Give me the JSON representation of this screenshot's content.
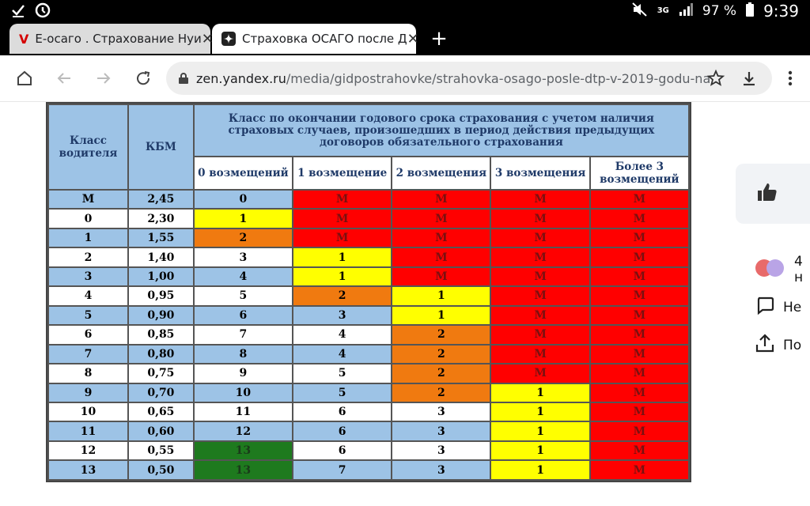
{
  "status_bar": {
    "left_icons": [
      "check-icon",
      "data-saver-icon"
    ],
    "network": "3G",
    "battery": "97 %",
    "time": "9:39"
  },
  "tabs": [
    {
      "favicon": "V",
      "title": "E-осаго . Страхование Нуи",
      "active": false
    },
    {
      "favicon": "",
      "title": "Страховка ОСАГО после Д",
      "active": true
    }
  ],
  "new_tab_label": "+",
  "omnibox": {
    "host": "zen.yandex.ru",
    "path": "/media/gidpostrahovke/strahovka-osago-posle-dtp-v-2019-godu-na"
  },
  "table": {
    "header_col1": "Класс водителя",
    "header_col2": "КБМ",
    "header_group": "Класс по окончании годового срока страхования с учетом наличия страховых случаев, произошедших в период действия предыдущих договоров обязательного страхования",
    "sub_headers": [
      "0 возмещений",
      "1 возмещение",
      "2 возмещения",
      "3 возмещения",
      "Более 3 возмещений"
    ],
    "rows": [
      {
        "cls": "M",
        "kbm": "2,45",
        "v": [
          "0",
          "M",
          "M",
          "M",
          "M"
        ]
      },
      {
        "cls": "0",
        "kbm": "2,30",
        "v": [
          "1",
          "M",
          "M",
          "M",
          "M"
        ]
      },
      {
        "cls": "1",
        "kbm": "1,55",
        "v": [
          "2",
          "M",
          "M",
          "M",
          "M"
        ]
      },
      {
        "cls": "2",
        "kbm": "1,40",
        "v": [
          "3",
          "1",
          "M",
          "M",
          "M"
        ]
      },
      {
        "cls": "3",
        "kbm": "1,00",
        "v": [
          "4",
          "1",
          "M",
          "M",
          "M"
        ]
      },
      {
        "cls": "4",
        "kbm": "0,95",
        "v": [
          "5",
          "2",
          "1",
          "M",
          "M"
        ]
      },
      {
        "cls": "5",
        "kbm": "0,90",
        "v": [
          "6",
          "3",
          "1",
          "M",
          "M"
        ]
      },
      {
        "cls": "6",
        "kbm": "0,85",
        "v": [
          "7",
          "4",
          "2",
          "M",
          "M"
        ]
      },
      {
        "cls": "7",
        "kbm": "0,80",
        "v": [
          "8",
          "4",
          "2",
          "M",
          "M"
        ]
      },
      {
        "cls": "8",
        "kbm": "0,75",
        "v": [
          "9",
          "5",
          "2",
          "M",
          "M"
        ]
      },
      {
        "cls": "9",
        "kbm": "0,70",
        "v": [
          "10",
          "5",
          "2",
          "1",
          "M"
        ]
      },
      {
        "cls": "10",
        "kbm": "0,65",
        "v": [
          "11",
          "6",
          "3",
          "1",
          "M"
        ]
      },
      {
        "cls": "11",
        "kbm": "0,60",
        "v": [
          "12",
          "6",
          "3",
          "1",
          "M"
        ]
      },
      {
        "cls": "12",
        "kbm": "0,55",
        "v": [
          "13",
          "6",
          "3",
          "1",
          "M"
        ]
      },
      {
        "cls": "13",
        "kbm": "0,50",
        "v": [
          "13",
          "7",
          "3",
          "1",
          "M"
        ]
      }
    ],
    "cell_colors": [
      [
        "blue",
        "red",
        "red",
        "red",
        "red"
      ],
      [
        "yellow",
        "red",
        "red",
        "red",
        "red"
      ],
      [
        "orange",
        "red",
        "red",
        "red",
        "red"
      ],
      [
        "white",
        "yellow",
        "red",
        "red",
        "red"
      ],
      [
        "blue",
        "yellow",
        "red",
        "red",
        "red"
      ],
      [
        "white",
        "orange",
        "yellow",
        "red",
        "red"
      ],
      [
        "blue",
        "blue",
        "yellow",
        "red",
        "red"
      ],
      [
        "white",
        "white",
        "orange",
        "red",
        "red"
      ],
      [
        "blue",
        "blue",
        "orange",
        "red",
        "red"
      ],
      [
        "white",
        "white",
        "orange",
        "red",
        "red"
      ],
      [
        "blue",
        "blue",
        "orange",
        "yellow",
        "red"
      ],
      [
        "white",
        "white",
        "white",
        "yellow",
        "red"
      ],
      [
        "blue",
        "blue",
        "blue",
        "yellow",
        "red"
      ],
      [
        "green",
        "white",
        "white",
        "yellow",
        "red"
      ],
      [
        "green",
        "blue",
        "blue",
        "yellow",
        "red"
      ]
    ],
    "colors": {
      "blue": "#9dc3e6",
      "white": "#ffffff",
      "red": "#ff0000",
      "yellow": "#ffff00",
      "orange": "#f07a10",
      "green": "#1e7a1e"
    }
  },
  "side_panel": {
    "reactions_text": "4 н",
    "comment_text": "Не",
    "share_text": "По"
  }
}
